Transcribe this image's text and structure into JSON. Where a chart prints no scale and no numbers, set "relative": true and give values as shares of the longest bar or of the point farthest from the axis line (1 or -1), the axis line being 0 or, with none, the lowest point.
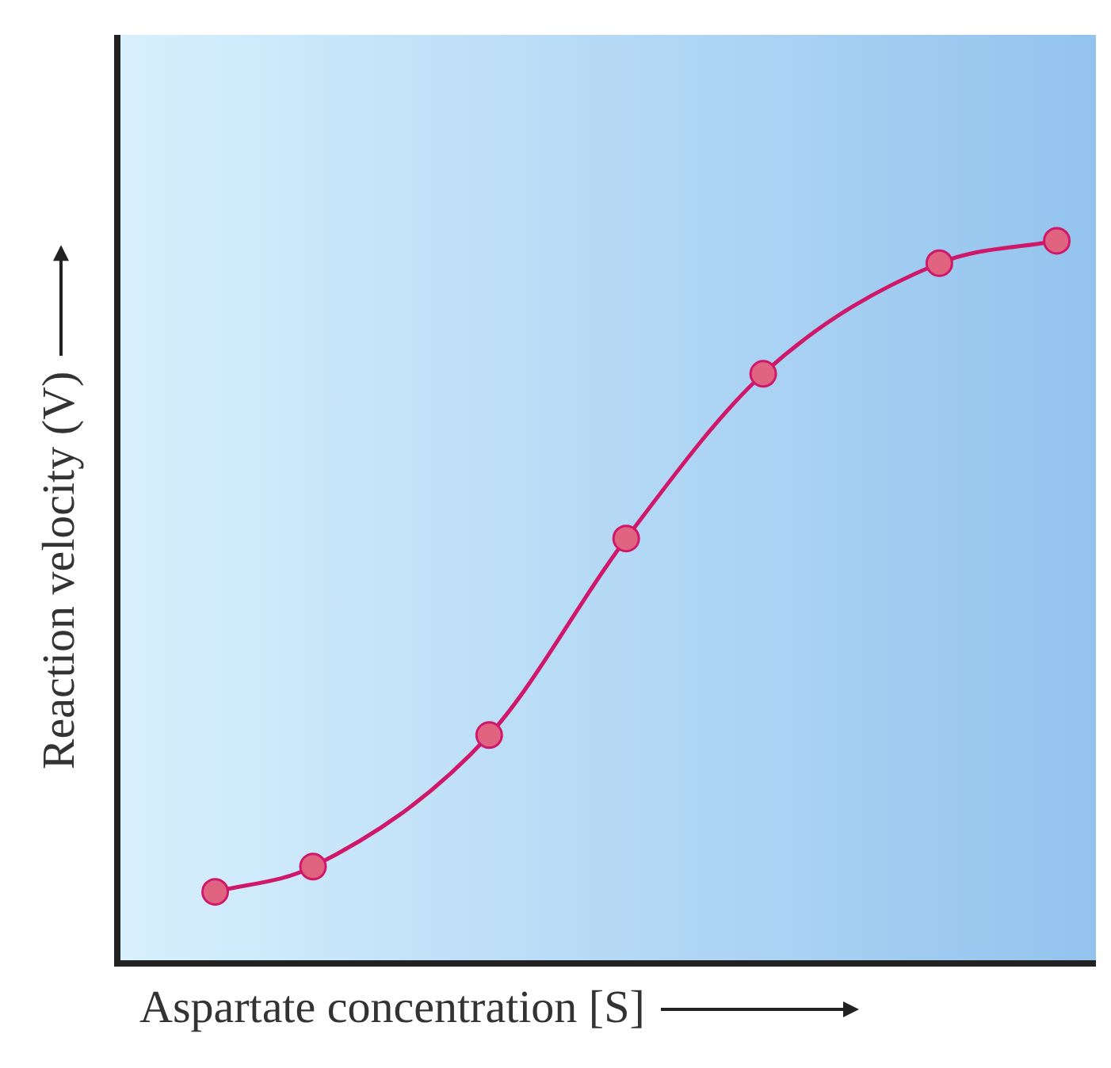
{
  "chart_data": {
    "type": "line",
    "relative": true,
    "xlabel": "Aspartate concentration [S]",
    "ylabel": "Reaction velocity (V)",
    "categories": [
      null,
      null,
      null,
      null,
      null,
      null,
      null,
      null,
      null,
      null,
      null,
      null,
      null,
      null,
      null,
      null,
      null,
      null,
      null,
      null,
      null,
      null,
      null,
      null,
      null,
      null,
      null,
      null,
      null,
      null,
      null,
      null,
      null,
      null,
      null,
      null,
      null,
      null,
      null,
      null,
      null,
      null,
      null,
      null,
      null,
      null,
      null,
      null,
      null,
      null,
      null
    ],
    "grid": false,
    "legend": false,
    "marker": "circle",
    "series": [
      {
        "color": "#d0186a",
        "values": [
          null,
          null,
          null,
          null,
          null,
          0.099,
          null,
          null,
          null,
          null,
          0.134,
          null,
          null,
          null,
          null,
          null,
          null,
          null,
          null,
          0.316,
          null,
          null,
          null,
          null,
          null,
          null,
          0.588,
          null,
          null,
          null,
          null,
          null,
          null,
          0.816,
          null,
          null,
          null,
          null,
          null,
          null,
          null,
          null,
          0.969,
          null,
          null,
          null,
          null,
          null,
          1,
          null,
          null
        ]
      }
    ]
  }
}
